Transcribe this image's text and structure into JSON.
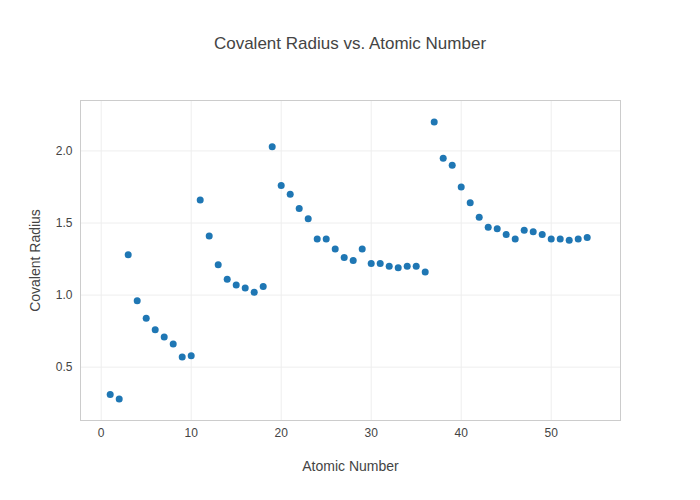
{
  "chart_data": {
    "type": "scatter",
    "title": "Covalent Radius vs. Atomic Number",
    "x_label": "Atomic Number",
    "y_label": "Covalent Radius",
    "x": [
      1,
      2,
      3,
      4,
      5,
      6,
      7,
      8,
      9,
      10,
      11,
      12,
      13,
      14,
      15,
      16,
      17,
      18,
      19,
      20,
      21,
      22,
      23,
      24,
      25,
      26,
      27,
      28,
      29,
      30,
      31,
      32,
      33,
      34,
      35,
      36,
      37,
      38,
      39,
      40,
      41,
      42,
      43,
      44,
      45,
      46,
      47,
      48,
      49,
      50,
      51,
      52,
      53,
      54
    ],
    "values": [
      0.31,
      0.28,
      1.28,
      0.96,
      0.84,
      0.76,
      0.71,
      0.66,
      0.57,
      0.58,
      1.66,
      1.41,
      1.21,
      1.11,
      1.07,
      1.05,
      1.02,
      1.06,
      2.03,
      1.76,
      1.7,
      1.6,
      1.53,
      1.39,
      1.39,
      1.32,
      1.26,
      1.24,
      1.32,
      1.22,
      1.22,
      1.2,
      1.19,
      1.2,
      1.2,
      1.16,
      2.2,
      1.95,
      1.9,
      1.75,
      1.64,
      1.54,
      1.47,
      1.46,
      1.42,
      1.39,
      1.45,
      1.44,
      1.42,
      1.39,
      1.39,
      1.38,
      1.39,
      1.4
    ],
    "color": "#1f77b4",
    "marker": "circle",
    "xlim": [
      -2.3,
      57.7
    ],
    "xticks": [
      0,
      10,
      20,
      30,
      40,
      50
    ],
    "ylim": [
      0.13,
      2.35
    ],
    "yticks": [
      0.5,
      1,
      1.5,
      2
    ],
    "grid": true
  }
}
